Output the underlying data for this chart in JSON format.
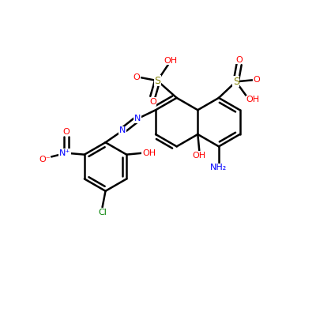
{
  "background_color": "#ffffff",
  "bond_color": "#000000",
  "atom_colors": {
    "O": "#ff0000",
    "N": "#0000ff",
    "S": "#808000",
    "Cl": "#008000",
    "C": "#000000"
  },
  "figsize": [
    4.0,
    4.0
  ],
  "dpi": 100,
  "xlim": [
    0,
    10
  ],
  "ylim": [
    0,
    10
  ]
}
